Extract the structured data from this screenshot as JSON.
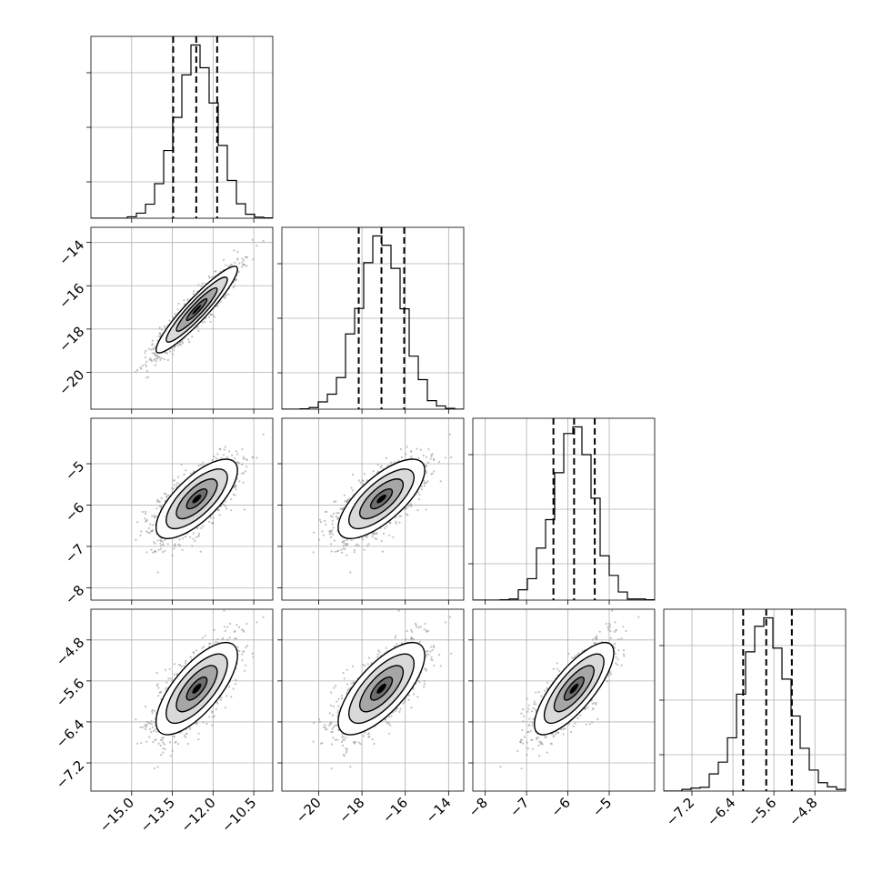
{
  "chart_data": {
    "type": "corner",
    "grid": true,
    "parameters": [
      {
        "mean": -12.6,
        "sd": 0.75,
        "range": [
          -16.5,
          -9.8
        ],
        "q16": -13.47,
        "q50": -12.62,
        "q84": -11.85,
        "ticks": [
          -15.0,
          -13.5,
          -12.0,
          -10.5
        ],
        "tick_labels": [
          "−15.0",
          "−13.5",
          "−12.0",
          "−10.5"
        ]
      },
      {
        "mean": -17.1,
        "sd": 1.0,
        "range": [
          -21.7,
          -13.3
        ],
        "q16": -18.15,
        "q50": -17.1,
        "q84": -16.05,
        "ticks": [
          -20,
          -18,
          -16,
          -14
        ],
        "tick_labels": [
          "−20",
          "−18",
          "−16",
          "−14"
        ]
      },
      {
        "mean": -5.85,
        "sd": 0.48,
        "range": [
          -8.3,
          -3.9
        ],
        "q16": -6.35,
        "q50": -5.85,
        "q84": -5.35,
        "ticks": [
          -8,
          -7,
          -6,
          -5
        ],
        "tick_labels": [
          "−8",
          "−7",
          "−6",
          "−5"
        ]
      },
      {
        "mean": -5.75,
        "sd": 0.45,
        "range": [
          -7.75,
          -4.2
        ],
        "q16": -6.2,
        "q50": -5.75,
        "q84": -5.25,
        "ticks": [
          -7.2,
          -6.4,
          -5.6,
          -4.8
        ],
        "tick_labels": [
          "−7.2",
          "−6.4",
          "−5.6",
          "−4.8"
        ]
      }
    ],
    "correlation": [
      [
        1.0,
        0.93,
        0.72,
        0.72
      ],
      [
        0.93,
        1.0,
        0.72,
        0.72
      ],
      [
        0.72,
        0.72,
        1.0,
        0.78
      ],
      [
        0.72,
        0.72,
        0.78,
        1.0
      ]
    ],
    "histogram_bins": 20,
    "quantiles": [
      0.16,
      0.5,
      0.84
    ],
    "contour_levels_sigma": [
      0.5,
      1.0,
      1.5,
      2.0
    ],
    "colors": {
      "line": "#000000",
      "points": "#9a9a9a",
      "grid": "#b0b0b0"
    }
  }
}
